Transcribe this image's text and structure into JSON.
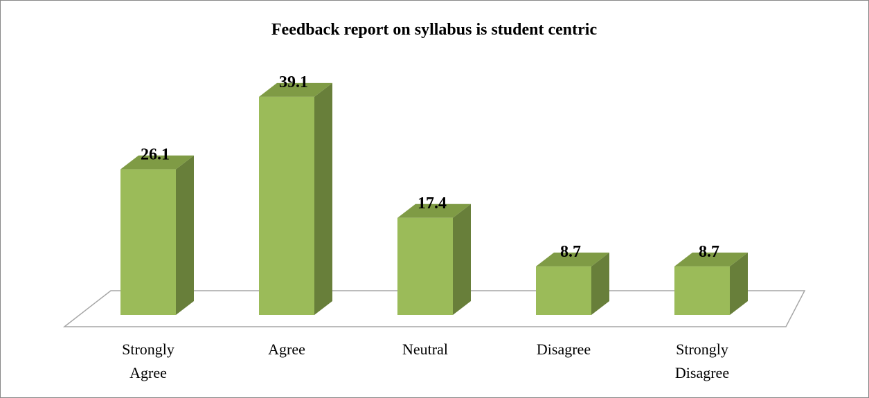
{
  "chart_data": {
    "type": "bar3d",
    "title": "Feedback report on syllabus is student centric",
    "categories": [
      "Strongly Agree",
      "Agree",
      "Neutral",
      "Disagree",
      "Strongly Disagree"
    ],
    "values": [
      26.1,
      39.1,
      17.4,
      8.7,
      8.7
    ],
    "color": "#9bbb59"
  }
}
